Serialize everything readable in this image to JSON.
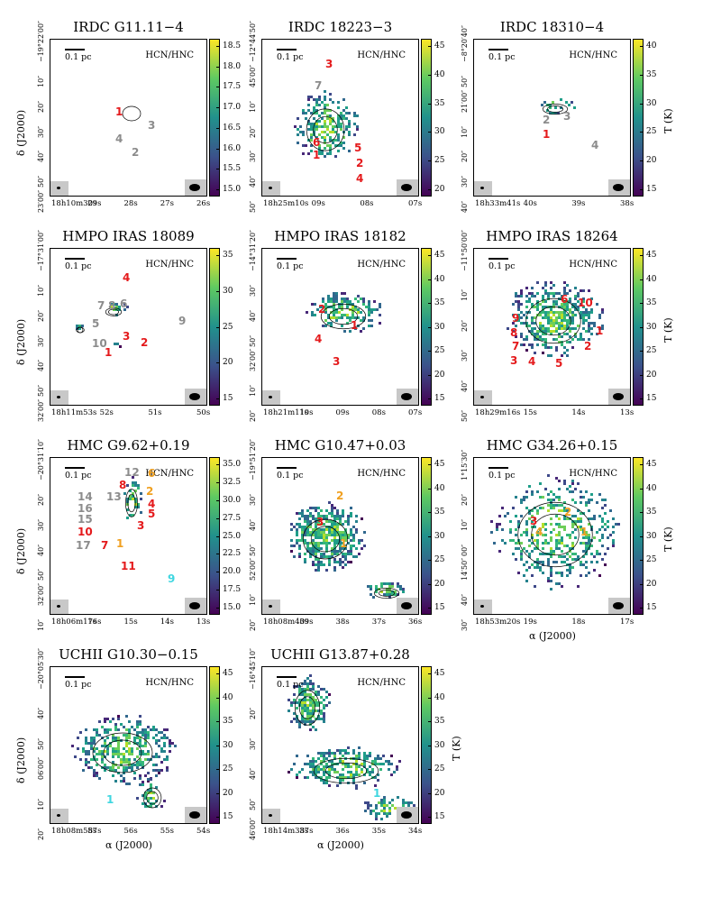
{
  "colors": {
    "red": "#e41a1c",
    "gray": "#8c8c8c",
    "orange": "#f0a020",
    "cyan": "#3fd6e0"
  },
  "axes": {
    "ra_label": "α (J2000)",
    "dec_label": "δ (J2000)",
    "colorbar_label": "T (K)"
  },
  "line_label": "HCN/HNC",
  "scale_label": "0.1 pc",
  "panels": [
    {
      "title": "IRDC G11.11−4",
      "yticks": [
        "−19°22′00″",
        "10″",
        "20″",
        "30″",
        "40″",
        "50″",
        "23′00″"
      ],
      "xticks": [
        "18h10m30s",
        "29s",
        "28s",
        "27s",
        "26s"
      ],
      "cbar": [
        "18.5",
        "18.0",
        "17.5",
        "17.0",
        "16.5",
        "16.0",
        "15.5",
        "15.0"
      ],
      "sources": [
        {
          "label": "1",
          "color": "red"
        },
        {
          "label": "3",
          "color": "gray"
        },
        {
          "label": "4",
          "color": "gray"
        },
        {
          "label": "2",
          "color": "gray"
        }
      ]
    },
    {
      "title": "IRDC 18223−3",
      "yticks": [
        "−12°44′50″",
        "45′00″",
        "10″",
        "20″",
        "30″",
        "40″",
        "50″"
      ],
      "xticks": [
        "18h25m10s",
        "09s",
        "08s",
        "07s"
      ],
      "cbar": [
        "45",
        "40",
        "35",
        "30",
        "25",
        "20"
      ],
      "sources": [
        {
          "label": "3",
          "color": "red"
        },
        {
          "label": "7",
          "color": "gray"
        },
        {
          "label": "6",
          "color": "red"
        },
        {
          "label": "1",
          "color": "red"
        },
        {
          "label": "5",
          "color": "red"
        },
        {
          "label": "2",
          "color": "red"
        },
        {
          "label": "4",
          "color": "red"
        }
      ]
    },
    {
      "title": "IRDC 18310−4",
      "yticks": [
        "−8°20′40″",
        "50″",
        "21′00″",
        "10″",
        "20″",
        "30″",
        "40″"
      ],
      "xticks": [
        "18h33m41s",
        "40s",
        "39s",
        "38s"
      ],
      "cbar": [
        "40",
        "35",
        "30",
        "25",
        "20",
        "15"
      ],
      "sources": [
        {
          "label": "2",
          "color": "gray"
        },
        {
          "label": "3",
          "color": "gray"
        },
        {
          "label": "1",
          "color": "red"
        },
        {
          "label": "4",
          "color": "gray"
        }
      ]
    },
    {
      "title": "HMPO IRAS 18089",
      "yticks": [
        "−17°31′00″",
        "10″",
        "20″",
        "30″",
        "40″",
        "50″",
        "32′00″"
      ],
      "xticks": [
        "18h11m53s",
        "52s",
        "51s",
        "50s"
      ],
      "cbar": [
        "35",
        "30",
        "25",
        "20",
        "15"
      ],
      "sources": [
        {
          "label": "4",
          "color": "red"
        },
        {
          "label": "7",
          "color": "gray"
        },
        {
          "label": "8",
          "color": "gray"
        },
        {
          "label": "6",
          "color": "gray"
        },
        {
          "label": "5",
          "color": "gray"
        },
        {
          "label": "9",
          "color": "gray"
        },
        {
          "label": "10",
          "color": "gray"
        },
        {
          "label": "3",
          "color": "red"
        },
        {
          "label": "2",
          "color": "red"
        },
        {
          "label": "1",
          "color": "red"
        }
      ]
    },
    {
      "title": "HMPO IRAS 18182",
      "yticks": [
        "−14°31′20″",
        "30″",
        "40″",
        "50″",
        "32′00″",
        "10″",
        "20″"
      ],
      "xticks": [
        "18h21m11s",
        "10s",
        "09s",
        "08s",
        "07s"
      ],
      "cbar": [
        "45",
        "40",
        "35",
        "30",
        "25",
        "20",
        "15"
      ],
      "sources": [
        {
          "label": "2",
          "color": "red"
        },
        {
          "label": "1",
          "color": "red"
        },
        {
          "label": "4",
          "color": "red"
        },
        {
          "label": "3",
          "color": "red"
        }
      ]
    },
    {
      "title": "HMPO IRAS 18264",
      "yticks": [
        "−11°50′00″",
        "10″",
        "20″",
        "30″",
        "40″",
        "50″"
      ],
      "xticks": [
        "18h29m16s",
        "15s",
        "14s",
        "13s"
      ],
      "cbar": [
        "45",
        "40",
        "35",
        "30",
        "25",
        "20",
        "15"
      ],
      "sources": [
        {
          "label": "6",
          "color": "red"
        },
        {
          "label": "10",
          "color": "red"
        },
        {
          "label": "9",
          "color": "red"
        },
        {
          "label": "8",
          "color": "red"
        },
        {
          "label": "7",
          "color": "red"
        },
        {
          "label": "1",
          "color": "red"
        },
        {
          "label": "2",
          "color": "red"
        },
        {
          "label": "3",
          "color": "red"
        },
        {
          "label": "4",
          "color": "red"
        },
        {
          "label": "5",
          "color": "red"
        }
      ]
    },
    {
      "title": "HMC G9.62+0.19",
      "yticks": [
        "−20°31′10″",
        "20″",
        "30″",
        "40″",
        "50″",
        "32′00″",
        "10″"
      ],
      "xticks": [
        "18h06m17s",
        "16s",
        "15s",
        "14s",
        "13s"
      ],
      "cbar": [
        "35.0",
        "32.5",
        "30.0",
        "27.5",
        "25.0",
        "22.5",
        "20.0",
        "17.5",
        "15.0"
      ],
      "sources": [
        {
          "label": "12",
          "color": "gray"
        },
        {
          "label": "6",
          "color": "orange"
        },
        {
          "label": "8",
          "color": "red"
        },
        {
          "label": "2",
          "color": "orange"
        },
        {
          "label": "14",
          "color": "gray"
        },
        {
          "label": "13",
          "color": "gray"
        },
        {
          "label": "4",
          "color": "red"
        },
        {
          "label": "16",
          "color": "gray"
        },
        {
          "label": "5",
          "color": "red"
        },
        {
          "label": "15",
          "color": "gray"
        },
        {
          "label": "10",
          "color": "red"
        },
        {
          "label": "3",
          "color": "red"
        },
        {
          "label": "17",
          "color": "gray"
        },
        {
          "label": "7",
          "color": "red"
        },
        {
          "label": "1",
          "color": "orange"
        },
        {
          "label": "11",
          "color": "red"
        },
        {
          "label": "9",
          "color": "cyan"
        }
      ]
    },
    {
      "title": "HMC G10.47+0.03",
      "yticks": [
        "−19°51′20″",
        "30″",
        "40″",
        "50″",
        "52′00″",
        "10″",
        "20″"
      ],
      "xticks": [
        "18h08m40s",
        "39s",
        "38s",
        "37s",
        "36s"
      ],
      "cbar": [
        "45",
        "40",
        "35",
        "30",
        "25",
        "20",
        "15"
      ],
      "sources": [
        {
          "label": "2",
          "color": "orange"
        },
        {
          "label": "3",
          "color": "red"
        },
        {
          "label": "1",
          "color": "orange"
        }
      ]
    },
    {
      "title": "HMC G34.26+0.15",
      "yticks": [
        "1°15′30″",
        "20″",
        "10″",
        "00″",
        "14′50″",
        "40″",
        "30″"
      ],
      "xticks": [
        "18h53m20s",
        "19s",
        "18s",
        "17s"
      ],
      "cbar": [
        "45",
        "40",
        "35",
        "30",
        "25",
        "20",
        "15"
      ],
      "sources": [
        {
          "label": "2",
          "color": "orange"
        },
        {
          "label": "3",
          "color": "red"
        },
        {
          "label": "4",
          "color": "orange"
        },
        {
          "label": "1",
          "color": "orange"
        }
      ]
    },
    {
      "title": "UCHII G10.30−0.15",
      "yticks": [
        "−20°05′30″",
        "40″",
        "50″",
        "06′00″",
        "10″",
        "20″"
      ],
      "xticks": [
        "18h08m58s",
        "57s",
        "56s",
        "55s",
        "54s"
      ],
      "cbar": [
        "45",
        "40",
        "35",
        "30",
        "25",
        "20",
        "15"
      ],
      "sources": [
        {
          "label": "1",
          "color": "cyan"
        }
      ]
    },
    {
      "title": "UCHII G13.87+0.28",
      "yticks": [
        "−16°45′10″",
        "20″",
        "30″",
        "40″",
        "50″",
        "46′00″"
      ],
      "xticks": [
        "18h14m38s",
        "37s",
        "36s",
        "35s",
        "34s"
      ],
      "cbar": [
        "45",
        "40",
        "35",
        "30",
        "25",
        "20",
        "15"
      ],
      "sources": [
        {
          "label": "1",
          "color": "cyan"
        }
      ]
    }
  ]
}
